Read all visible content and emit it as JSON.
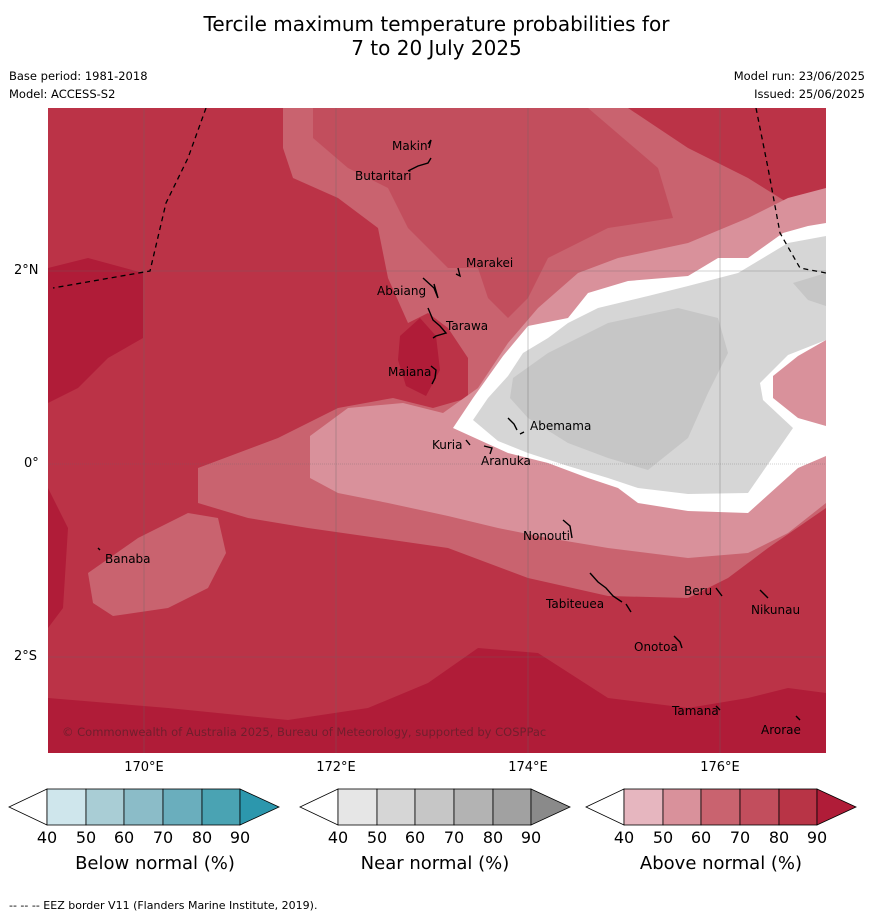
{
  "header": {
    "title_line1": "Tercile maximum temperature probabilities for",
    "title_line2": "7 to 20 July 2025",
    "base_period": "Base period: 1981-2018",
    "model": "Model: ACCESS-S2",
    "model_run": "Model run: 23/06/2025",
    "issued": "Issued: 25/06/2025"
  },
  "map": {
    "longitude_labels": [
      "170°E",
      "172°E",
      "174°E",
      "176°E"
    ],
    "latitude_labels": [
      "2°N",
      "0°",
      "2°S"
    ],
    "islands": [
      "Makin",
      "Butaritari",
      "Marakei",
      "Abaiang",
      "Tarawa",
      "Maiana",
      "Abemama",
      "Kuria",
      "Aranuka",
      "Nonouti",
      "Banaba",
      "Beru",
      "Nikunau",
      "Tabiteuea",
      "Onotoa",
      "Tamana",
      "Arorae"
    ],
    "copyright": "© Commonwealth of Australia 2025, Bureau of Meteorology, supported by COSPPac",
    "colors": {
      "above_60": "#d9919b",
      "above_70": "#c9636f",
      "above_80": "#bb3347",
      "above_90": "#b01c38",
      "near_normal": "#d6d6d6",
      "near_normal_high": "#c6c6c6"
    }
  },
  "legends": [
    {
      "name": "Below normal (%)",
      "ticks": [
        "40",
        "50",
        "60",
        "70",
        "80",
        "90"
      ],
      "colors": [
        "#ffffff",
        "#cfe6ec",
        "#a9cdd5",
        "#8bbcc8",
        "#6aaebd",
        "#4aa3b3",
        "#2c97ad"
      ]
    },
    {
      "name": "Near normal (%)",
      "ticks": [
        "40",
        "50",
        "60",
        "70",
        "80",
        "90"
      ],
      "colors": [
        "#ffffff",
        "#e6e6e6",
        "#d6d6d6",
        "#c6c6c6",
        "#b3b3b3",
        "#a1a1a1",
        "#8a8a8a"
      ]
    },
    {
      "name": "Above normal (%)",
      "ticks": [
        "40",
        "50",
        "60",
        "70",
        "80",
        "90"
      ],
      "colors": [
        "#ffffff",
        "#e6b6bf",
        "#d9919b",
        "#c9636f",
        "#c24e5d",
        "#b83446",
        "#b01c38"
      ]
    }
  ],
  "footer": "--  --  -- EEZ border V11 (Flanders Marine Institute, 2019)."
}
